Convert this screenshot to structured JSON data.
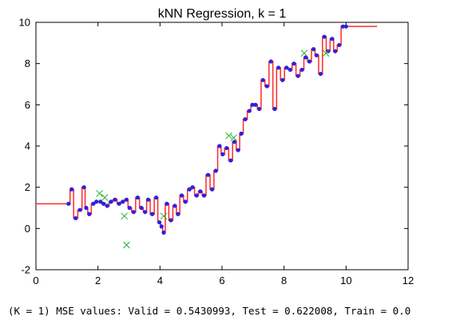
{
  "chart_data": {
    "type": "scatter",
    "title": "kNN Regression, k = 1",
    "xlabel": "",
    "ylabel": "",
    "xlim": [
      0,
      12
    ],
    "ylim": [
      -2,
      10
    ],
    "xticks": [
      0,
      2,
      4,
      6,
      8,
      10,
      12
    ],
    "yticks": [
      -2,
      0,
      2,
      4,
      6,
      8,
      10
    ],
    "grid": false,
    "colors": {
      "train_points": "#2a22e0",
      "prediction_line": "#ff2a2a",
      "test_points": "#22b024"
    },
    "series": [
      {
        "kind": "train",
        "x": [
          1.05,
          1.15,
          1.28,
          1.42,
          1.55,
          1.62,
          1.72,
          1.85,
          1.95,
          2.08,
          2.18,
          2.3,
          2.42,
          2.55,
          2.68,
          2.8,
          2.92,
          3.02,
          3.15,
          3.28,
          3.4,
          3.52,
          3.62,
          3.75,
          3.88,
          3.98,
          4.05,
          4.12,
          4.22,
          4.35,
          4.48,
          4.58,
          4.7,
          4.82,
          4.95,
          5.05,
          5.18,
          5.3,
          5.42,
          5.55,
          5.68,
          5.8,
          5.92,
          6.02,
          6.15,
          6.28,
          6.4,
          6.52,
          6.62,
          6.75,
          6.88,
          6.98,
          7.08,
          7.2,
          7.32,
          7.45,
          7.58,
          7.7,
          7.82,
          7.95,
          8.08,
          8.2,
          8.32,
          8.45,
          8.58,
          8.7,
          8.82,
          8.95,
          9.05,
          9.18,
          9.3,
          9.42,
          9.55,
          9.65,
          9.78,
          9.9,
          10.0
        ],
        "y": [
          1.2,
          1.9,
          0.5,
          0.9,
          2.0,
          1.0,
          0.7,
          1.2,
          1.3,
          1.3,
          1.2,
          1.1,
          1.3,
          1.4,
          1.2,
          1.3,
          1.4,
          1.0,
          0.8,
          1.5,
          1.0,
          0.8,
          1.4,
          0.7,
          1.5,
          0.3,
          0.1,
          -0.2,
          1.2,
          0.4,
          1.1,
          0.7,
          1.6,
          1.3,
          1.9,
          2.0,
          1.6,
          1.8,
          1.6,
          2.6,
          1.9,
          2.8,
          4.0,
          3.6,
          3.9,
          3.3,
          4.2,
          3.8,
          4.6,
          5.3,
          5.7,
          6.0,
          6.0,
          5.8,
          7.2,
          6.9,
          8.1,
          5.8,
          7.8,
          7.2,
          7.8,
          7.7,
          8.0,
          7.4,
          7.7,
          8.3,
          8.1,
          8.7,
          8.4,
          7.5,
          9.3,
          8.6,
          9.2,
          8.6,
          8.9,
          9.8,
          9.8
        ],
        "marker": "circle"
      },
      {
        "kind": "test",
        "x": [
          2.05,
          2.22,
          2.85,
          2.92,
          4.12,
          6.22,
          6.38,
          8.65,
          9.35
        ],
        "y": [
          1.7,
          1.5,
          0.6,
          -0.8,
          0.6,
          4.5,
          4.4,
          8.5,
          8.5
        ],
        "marker": "x"
      }
    ],
    "prediction_line": {
      "x_range": [
        0,
        11
      ],
      "step": "nearest-neighbor"
    }
  },
  "footer": {
    "mse_text": "(K = 1) MSE values: Valid = 0.5430993, Test = 0.622008, Train = 0.0"
  }
}
